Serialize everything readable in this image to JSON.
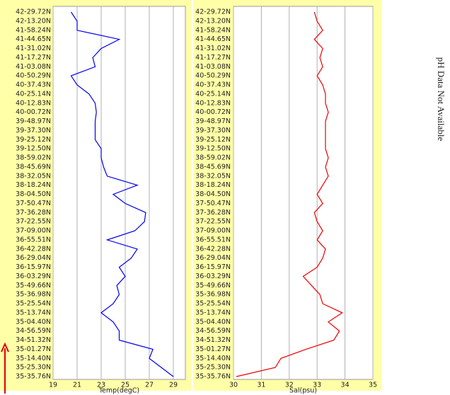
{
  "chart_data": [
    {
      "type": "line",
      "xlabel": "Temp(degC)",
      "color": "#0000ee",
      "categories": [
        "42-29.72N",
        "42-13.20N",
        "41-58.24N",
        "41-44.65N",
        "41-31.02N",
        "41-17.27N",
        "41-03.08N",
        "40-50.29N",
        "40-37.43N",
        "40-25.14N",
        "40-12.83N",
        "40-00.72N",
        "39-48.97N",
        "39-37.30N",
        "39-25.12N",
        "39-12.50N",
        "38-59.02N",
        "38-45.69N",
        "38-32.05N",
        "38-18.24N",
        "38-04.50N",
        "37-50.47N",
        "37-36.28N",
        "37-22.55N",
        "37-09.00N",
        "36-55.51N",
        "36-42.28N",
        "36-29.04N",
        "36-15.97N",
        "36-03.29N",
        "35-49.66N",
        "35-36.98N",
        "35-25.54N",
        "35-13.74N",
        "35-04.40N",
        "34-56.59N",
        "34-51.32N",
        "35-01.27N",
        "35-14.40N",
        "35-25.30N",
        "35-35.76N"
      ],
      "values": [
        20.5,
        21,
        21,
        24.5,
        23,
        22.3,
        22.5,
        20.5,
        21,
        22,
        22.5,
        22.6,
        22.5,
        22.5,
        22.5,
        23,
        23,
        23.2,
        23.5,
        26,
        24,
        25,
        26.7,
        26.6,
        25.8,
        23.5,
        26,
        25.5,
        24.5,
        25,
        24.3,
        24.5,
        24,
        23,
        24,
        24.5,
        24.5,
        27.3,
        27,
        28,
        29
      ],
      "xlim": [
        19,
        30
      ],
      "xticks": [
        19,
        21,
        23,
        25,
        27,
        29
      ],
      "grid": true
    },
    {
      "type": "line",
      "xlabel": "Sal(psu)",
      "color": "#ee0000",
      "categories": [
        "42-29.72N",
        "42-13.20N",
        "41-58.24N",
        "41-44.65N",
        "41-31.02N",
        "41-17.27N",
        "41-03.08N",
        "40-50.29N",
        "40-37.43N",
        "40-25.14N",
        "40-12.83N",
        "40-00.72N",
        "39-48.97N",
        "39-37.30N",
        "39-25.12N",
        "39-12.50N",
        "38-59.02N",
        "38-45.69N",
        "38-32.05N",
        "38-18.24N",
        "38-04.50N",
        "37-50.47N",
        "37-36.28N",
        "37-22.55N",
        "37-09.00N",
        "36-55.51N",
        "36-42.28N",
        "36-29.04N",
        "36-15.97N",
        "36-03.29N",
        "35-49.66N",
        "35-36.98N",
        "35-25.54N",
        "35-13.74N",
        "35-04.40N",
        "34-56.59N",
        "34-51.32N",
        "35-01.27N",
        "35-14.40N",
        "35-25.30N",
        "35-35.76N"
      ],
      "values": [
        32.9,
        33,
        33.2,
        32.9,
        33.2,
        33.1,
        33.2,
        33,
        33.2,
        33.3,
        33.3,
        33.4,
        33.3,
        33.3,
        33.3,
        33.3,
        33.4,
        33.3,
        33.4,
        33.2,
        33,
        33.2,
        32.9,
        33,
        33.2,
        33,
        33.3,
        33.2,
        33,
        32.5,
        32.8,
        33.1,
        33.2,
        33.9,
        33.4,
        33.8,
        33.6,
        32.6,
        31.7,
        31.5,
        30.1
      ],
      "xlim": [
        30,
        35
      ],
      "xticks": [
        30,
        31,
        32,
        33,
        34,
        35
      ],
      "grid": true
    }
  ],
  "side_note": "pH Data Not Available"
}
